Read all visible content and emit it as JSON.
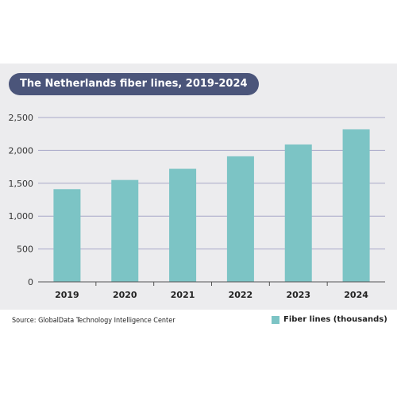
{
  "chart_data": {
    "type": "bar",
    "title": "The Netherlands fiber lines, 2019-2024",
    "categories": [
      "2019",
      "2020",
      "2021",
      "2022",
      "2023",
      "2024"
    ],
    "series": [
      {
        "name": "Fiber lines (thousands)",
        "values": [
          1410,
          1550,
          1720,
          1910,
          2090,
          2320
        ]
      }
    ],
    "ylim": [
      0,
      2500
    ],
    "yticks": [
      0,
      500,
      1000,
      1500,
      2000,
      2500
    ],
    "ytick_labels": [
      "0",
      "500",
      "1,000",
      "1,500",
      "2,000",
      "2,500"
    ],
    "grid": true,
    "legend_position": "bottom-right",
    "bar_color": "#7cc4c5",
    "source": "Source: GlobalData Technology Intelligence Center"
  }
}
